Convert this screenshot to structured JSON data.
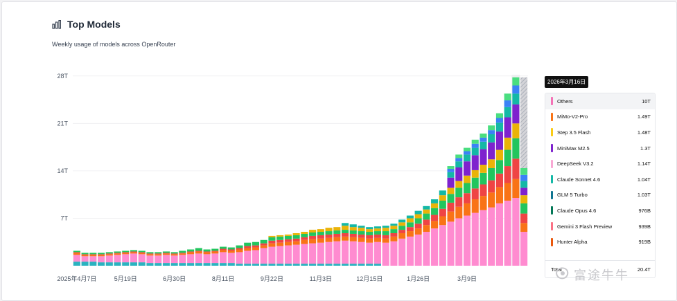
{
  "header": {
    "title": "Top Models",
    "subtitle": "Weekly usage of models across OpenRouter"
  },
  "chart_data": {
    "type": "bar",
    "stacked": true,
    "y_unit": "T",
    "ylim": [
      0,
      29
    ],
    "yticks": [
      {
        "value": 7,
        "label": "7T"
      },
      {
        "value": 14,
        "label": "14T"
      },
      {
        "value": 21,
        "label": "21T"
      },
      {
        "value": 28,
        "label": "28T"
      }
    ],
    "xtick_labels": [
      "2025年4月7日",
      "5月19日",
      "6月30日",
      "8月11日",
      "9月22日",
      "11月3日",
      "12月15日",
      "1月26日",
      "3月9日"
    ],
    "xtick_every": 6,
    "stack_colors": [
      "#2bb3c0",
      "#ff8bd0",
      "#f97316",
      "#ef4444",
      "#22c55e",
      "#eab308",
      "#7e22ce",
      "#14b8a6",
      "#3b82f6",
      "#4ade80",
      "#a3a3a3"
    ],
    "weekly_stacks": [
      [
        0.6,
        1.0,
        0.3,
        0.1,
        0.2,
        0.0,
        0.0,
        0.0,
        0.0,
        0.0,
        0.0
      ],
      [
        0.6,
        0.8,
        0.2,
        0.1,
        0.2,
        0.0,
        0.0,
        0.0,
        0.0,
        0.0,
        0.0
      ],
      [
        0.6,
        0.8,
        0.2,
        0.1,
        0.2,
        0.0,
        0.0,
        0.0,
        0.0,
        0.0,
        0.0
      ],
      [
        0.5,
        0.9,
        0.2,
        0.1,
        0.2,
        0.0,
        0.0,
        0.0,
        0.0,
        0.0,
        0.0
      ],
      [
        0.5,
        1.0,
        0.2,
        0.1,
        0.2,
        0.0,
        0.0,
        0.0,
        0.0,
        0.0,
        0.0
      ],
      [
        0.5,
        1.1,
        0.2,
        0.1,
        0.2,
        0.0,
        0.0,
        0.0,
        0.0,
        0.0,
        0.0
      ],
      [
        0.5,
        1.2,
        0.2,
        0.1,
        0.2,
        0.0,
        0.0,
        0.0,
        0.0,
        0.0,
        0.0
      ],
      [
        0.5,
        1.3,
        0.2,
        0.1,
        0.2,
        0.0,
        0.0,
        0.0,
        0.0,
        0.0,
        0.0
      ],
      [
        0.5,
        1.2,
        0.2,
        0.1,
        0.2,
        0.0,
        0.0,
        0.0,
        0.0,
        0.0,
        0.0
      ],
      [
        0.4,
        1.1,
        0.2,
        0.1,
        0.2,
        0.0,
        0.0,
        0.0,
        0.0,
        0.0,
        0.0
      ],
      [
        0.4,
        1.1,
        0.2,
        0.1,
        0.2,
        0.0,
        0.0,
        0.0,
        0.0,
        0.0,
        0.0
      ],
      [
        0.4,
        1.2,
        0.2,
        0.1,
        0.2,
        0.0,
        0.0,
        0.0,
        0.0,
        0.0,
        0.0
      ],
      [
        0.4,
        1.1,
        0.2,
        0.1,
        0.2,
        0.0,
        0.0,
        0.0,
        0.0,
        0.0,
        0.0
      ],
      [
        0.4,
        1.2,
        0.2,
        0.1,
        0.3,
        0.0,
        0.0,
        0.0,
        0.0,
        0.0,
        0.0
      ],
      [
        0.4,
        1.3,
        0.3,
        0.1,
        0.3,
        0.0,
        0.0,
        0.0,
        0.0,
        0.0,
        0.0
      ],
      [
        0.4,
        1.4,
        0.3,
        0.1,
        0.4,
        0.0,
        0.0,
        0.0,
        0.0,
        0.0,
        0.0
      ],
      [
        0.4,
        1.3,
        0.3,
        0.1,
        0.3,
        0.0,
        0.0,
        0.0,
        0.0,
        0.0,
        0.0
      ],
      [
        0.4,
        1.4,
        0.3,
        0.1,
        0.3,
        0.0,
        0.0,
        0.0,
        0.0,
        0.0,
        0.0
      ],
      [
        0.4,
        1.6,
        0.3,
        0.2,
        0.3,
        0.0,
        0.0,
        0.0,
        0.0,
        0.0,
        0.0
      ],
      [
        0.4,
        1.5,
        0.3,
        0.2,
        0.3,
        0.0,
        0.0,
        0.0,
        0.0,
        0.0,
        0.0
      ],
      [
        0.3,
        1.7,
        0.4,
        0.2,
        0.4,
        0.0,
        0.0,
        0.0,
        0.0,
        0.0,
        0.0
      ],
      [
        0.3,
        1.9,
        0.4,
        0.3,
        0.5,
        0.0,
        0.0,
        0.0,
        0.0,
        0.0,
        0.0
      ],
      [
        0.3,
        2.0,
        0.4,
        0.3,
        0.5,
        0.0,
        0.0,
        0.0,
        0.0,
        0.0,
        0.0
      ],
      [
        0.3,
        2.3,
        0.4,
        0.3,
        0.5,
        0.0,
        0.0,
        0.0,
        0.0,
        0.0,
        0.0
      ],
      [
        0.3,
        2.5,
        0.5,
        0.4,
        0.5,
        0.2,
        0.0,
        0.0,
        0.0,
        0.0,
        0.0
      ],
      [
        0.3,
        2.6,
        0.5,
        0.4,
        0.5,
        0.2,
        0.0,
        0.0,
        0.0,
        0.0,
        0.0
      ],
      [
        0.3,
        2.7,
        0.5,
        0.4,
        0.5,
        0.2,
        0.0,
        0.0,
        0.0,
        0.0,
        0.0
      ],
      [
        0.3,
        2.8,
        0.5,
        0.4,
        0.5,
        0.3,
        0.0,
        0.0,
        0.0,
        0.0,
        0.0
      ],
      [
        0.3,
        2.9,
        0.6,
        0.4,
        0.5,
        0.3,
        0.0,
        0.0,
        0.0,
        0.0,
        0.0
      ],
      [
        0.3,
        3.0,
        0.6,
        0.5,
        0.5,
        0.4,
        0.0,
        0.0,
        0.0,
        0.0,
        0.0
      ],
      [
        0.3,
        3.1,
        0.6,
        0.5,
        0.5,
        0.4,
        0.0,
        0.0,
        0.0,
        0.0,
        0.0
      ],
      [
        0.3,
        3.2,
        0.6,
        0.5,
        0.5,
        0.5,
        0.0,
        0.0,
        0.0,
        0.0,
        0.0
      ],
      [
        0.3,
        3.3,
        0.6,
        0.5,
        0.5,
        0.5,
        0.0,
        0.0,
        0.0,
        0.0,
        0.0
      ],
      [
        0.3,
        3.4,
        0.6,
        0.5,
        0.5,
        0.6,
        0.0,
        0.4,
        0.0,
        0.0,
        0.0
      ],
      [
        0.3,
        3.3,
        0.6,
        0.5,
        0.5,
        0.5,
        0.0,
        0.4,
        0.0,
        0.0,
        0.0
      ],
      [
        0.3,
        3.2,
        0.6,
        0.5,
        0.5,
        0.5,
        0.0,
        0.3,
        0.0,
        0.0,
        0.0
      ],
      [
        0.3,
        3.1,
        0.6,
        0.5,
        0.5,
        0.4,
        0.0,
        0.3,
        0.0,
        0.0,
        0.0
      ],
      [
        0.3,
        3.2,
        0.6,
        0.5,
        0.5,
        0.4,
        0.0,
        0.3,
        0.0,
        0.0,
        0.0
      ],
      [
        0.0,
        3.4,
        0.6,
        0.5,
        0.6,
        0.5,
        0.0,
        0.3,
        0.0,
        0.0,
        0.0
      ],
      [
        0.0,
        3.6,
        0.7,
        0.5,
        0.6,
        0.5,
        0.0,
        0.3,
        0.0,
        0.0,
        0.0
      ],
      [
        0.0,
        4.0,
        0.8,
        0.5,
        0.6,
        0.5,
        0.0,
        0.4,
        0.0,
        0.0,
        0.0
      ],
      [
        0.0,
        4.3,
        0.8,
        0.6,
        0.7,
        0.6,
        0.0,
        0.4,
        0.0,
        0.0,
        0.0
      ],
      [
        0.0,
        4.6,
        0.9,
        0.7,
        0.8,
        0.6,
        0.0,
        0.5,
        0.0,
        0.0,
        0.0
      ],
      [
        0.0,
        5.0,
        1.0,
        0.8,
        0.9,
        0.6,
        0.0,
        0.5,
        0.0,
        0.0,
        0.0
      ],
      [
        0.0,
        5.5,
        1.1,
        0.9,
        1.0,
        0.7,
        0.0,
        0.6,
        0.0,
        0.0,
        0.0
      ],
      [
        0.0,
        6.0,
        1.3,
        1.1,
        1.2,
        0.8,
        0.0,
        0.7,
        0.0,
        0.0,
        0.0
      ],
      [
        0.0,
        6.5,
        1.5,
        1.3,
        1.3,
        0.9,
        1.5,
        0.8,
        0.5,
        0.4,
        0.0
      ],
      [
        0.0,
        7.0,
        1.7,
        1.4,
        1.4,
        1.0,
        2.0,
        0.9,
        0.5,
        0.5,
        0.0
      ],
      [
        0.0,
        7.4,
        1.8,
        1.5,
        1.5,
        1.1,
        2.1,
        1.0,
        0.5,
        0.5,
        0.0
      ],
      [
        0.0,
        7.8,
        2.0,
        1.6,
        1.6,
        1.1,
        2.2,
        1.1,
        0.6,
        0.6,
        0.0
      ],
      [
        0.0,
        8.2,
        2.1,
        1.7,
        1.7,
        1.2,
        2.3,
        1.1,
        0.6,
        0.6,
        0.0
      ],
      [
        0.0,
        8.6,
        2.2,
        1.8,
        1.8,
        1.3,
        2.5,
        1.2,
        0.6,
        0.7,
        0.0
      ],
      [
        0.0,
        9.2,
        2.4,
        2.0,
        2.0,
        1.5,
        2.7,
        1.3,
        0.7,
        0.7,
        0.0
      ],
      [
        0.0,
        9.6,
        2.6,
        2.5,
        2.4,
        1.8,
        3.0,
        1.5,
        1.0,
        1.0,
        0.0
      ],
      [
        0.0,
        10.0,
        2.8,
        3.0,
        3.0,
        2.2,
        2.8,
        1.6,
        1.2,
        1.2,
        0.0
      ],
      [
        0.0,
        5.0,
        1.3,
        1.4,
        1.5,
        1.2,
        1.1,
        1.0,
        0.9,
        1.0,
        13.4
      ]
    ]
  },
  "tooltip": {
    "date": "2026年3月16日",
    "items": [
      {
        "name": "Others",
        "value": "10T",
        "color": "#f472b6"
      },
      {
        "name": "MiMo-V2-Pro",
        "value": "1.49T",
        "color": "#f97316"
      },
      {
        "name": "Step 3.5 Flash",
        "value": "1.48T",
        "color": "#facc15"
      },
      {
        "name": "MiniMax M2.5",
        "value": "1.3T",
        "color": "#7e22ce"
      },
      {
        "name": "DeepSeek V3.2",
        "value": "1.14T",
        "color": "#f9a8d4"
      },
      {
        "name": "Claude Sonnet 4.6",
        "value": "1.04T",
        "color": "#14b8a6"
      },
      {
        "name": "GLM 5 Turbo",
        "value": "1.03T",
        "color": "#0e7490"
      },
      {
        "name": "Claude Opus 4.6",
        "value": "976B",
        "color": "#047857"
      },
      {
        "name": "Gemini 3 Flash Preview",
        "value": "939B",
        "color": "#fb7185"
      },
      {
        "name": "Hunter Alpha",
        "value": "919B",
        "color": "#ea580c"
      }
    ],
    "total_label": "Total",
    "total_value": "20.4T"
  },
  "watermark": {
    "text": "富途牛牛"
  }
}
